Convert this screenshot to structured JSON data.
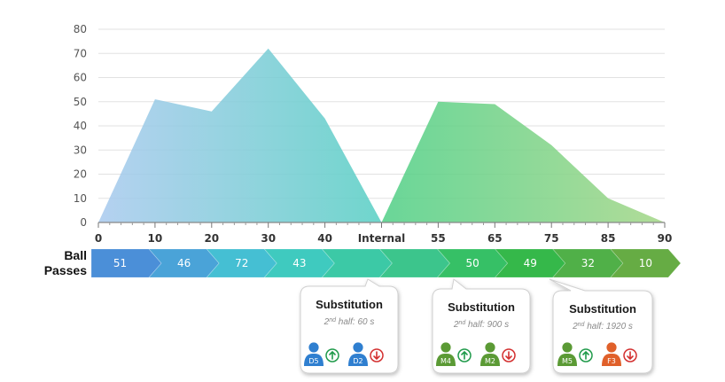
{
  "chart_data": {
    "type": "area",
    "ylim": [
      0,
      80
    ],
    "yticks": [
      0,
      10,
      20,
      30,
      40,
      50,
      60,
      70,
      80
    ],
    "grid": true,
    "row_label_line1": "Ball",
    "row_label_line2": "Passes",
    "x_ticks": [
      "0",
      "10",
      "20",
      "30",
      "40",
      "Internal",
      "55",
      "65",
      "75",
      "85",
      "90"
    ],
    "series": [
      {
        "values": [
          {
            "x": 0,
            "y": 0
          },
          {
            "x": 10,
            "y": 51
          },
          {
            "x": 20,
            "y": 46
          },
          {
            "x": 30,
            "y": 72
          },
          {
            "x": 40,
            "y": 43
          },
          {
            "x": 50,
            "y": 0
          }
        ],
        "color_start": "#a8c9ee",
        "color_end": "#5fd1c6"
      },
      {
        "values": [
          {
            "x": 50,
            "y": 0
          },
          {
            "x": 60,
            "y": 50
          },
          {
            "x": 70,
            "y": 49
          },
          {
            "x": 80,
            "y": 32
          },
          {
            "x": 90,
            "y": 10
          },
          {
            "x": 100,
            "y": 0
          }
        ],
        "color_start": "#4fcf86",
        "color_end": "#a9d88d"
      }
    ],
    "passes": [
      {
        "label": "51",
        "color": "#4b8fd8"
      },
      {
        "label": "46",
        "color": "#4aa3d8"
      },
      {
        "label": "72",
        "color": "#45bfd3"
      },
      {
        "label": "43",
        "color": "#3fcabf"
      },
      {
        "label": "",
        "color": "#3cc9a6"
      },
      {
        "label": "",
        "color": "#3cc58c"
      },
      {
        "label": "50",
        "color": "#36c066"
      },
      {
        "label": "49",
        "color": "#35b84a"
      },
      {
        "label": "32",
        "color": "#50b048"
      },
      {
        "label": "10",
        "color": "#66ac44"
      }
    ],
    "substitutions": [
      {
        "title": "Substitution",
        "half_ord": "2",
        "half_sup": "nd",
        "half_text": " half: 60 s",
        "players": [
          {
            "code": "D5",
            "color": "#2f7fd0",
            "dir": "up"
          },
          {
            "code": "D2",
            "color": "#2f7fd0",
            "dir": "down"
          }
        ]
      },
      {
        "title": "Substitution",
        "half_ord": "2",
        "half_sup": "nd",
        "half_text": " half: 900 s",
        "players": [
          {
            "code": "M4",
            "color": "#5b9a35",
            "dir": "up"
          },
          {
            "code": "M2",
            "color": "#5b9a35",
            "dir": "down"
          }
        ]
      },
      {
        "title": "Substitution",
        "half_ord": "2",
        "half_sup": "nd",
        "half_text": " half: 1920 s",
        "players": [
          {
            "code": "M5",
            "color": "#5b9a35",
            "dir": "up"
          },
          {
            "code": "F3",
            "color": "#e0602a",
            "dir": "down"
          }
        ]
      }
    ],
    "arrow_up_color": "#1f9a4a",
    "arrow_down_color": "#d32f2f"
  }
}
